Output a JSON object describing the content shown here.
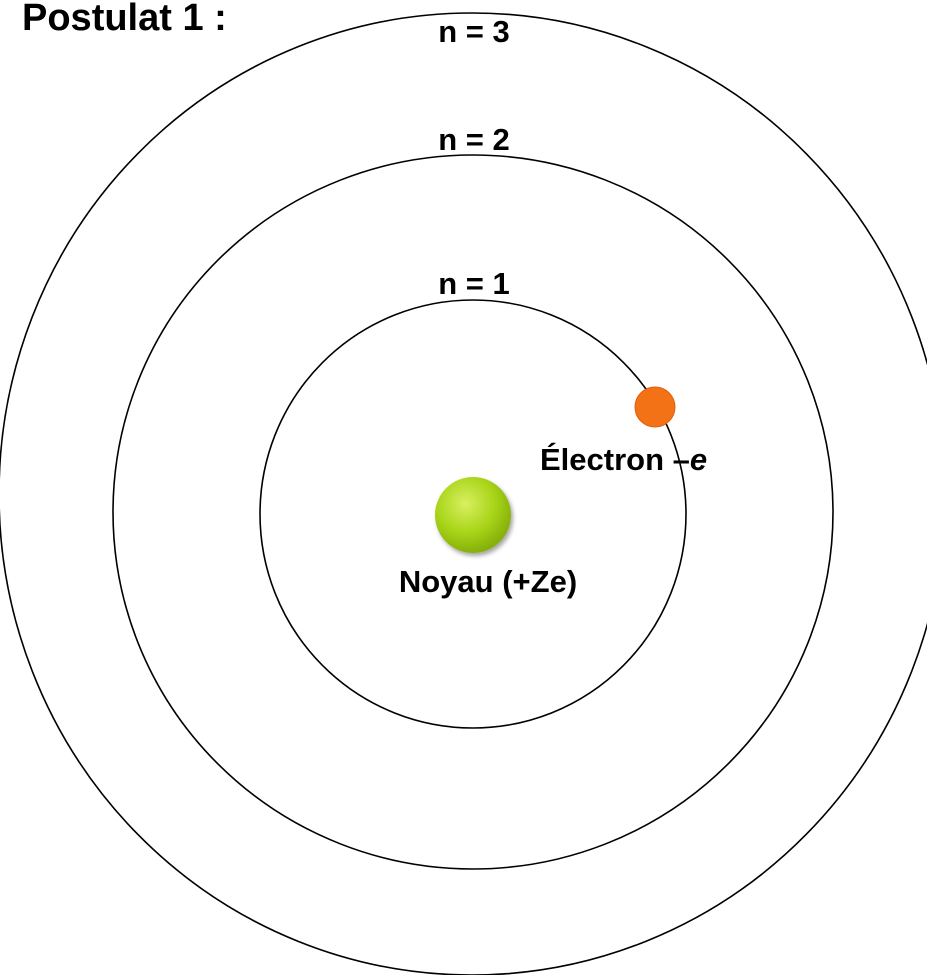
{
  "title": "Postulat 1 :",
  "orbits": [
    {
      "label": "n = 1"
    },
    {
      "label": "n = 2"
    },
    {
      "label": "n = 3"
    }
  ],
  "nucleus": {
    "label": "Noyau (+Ze)"
  },
  "electron": {
    "label": "Électron –",
    "symbol": "e"
  }
}
